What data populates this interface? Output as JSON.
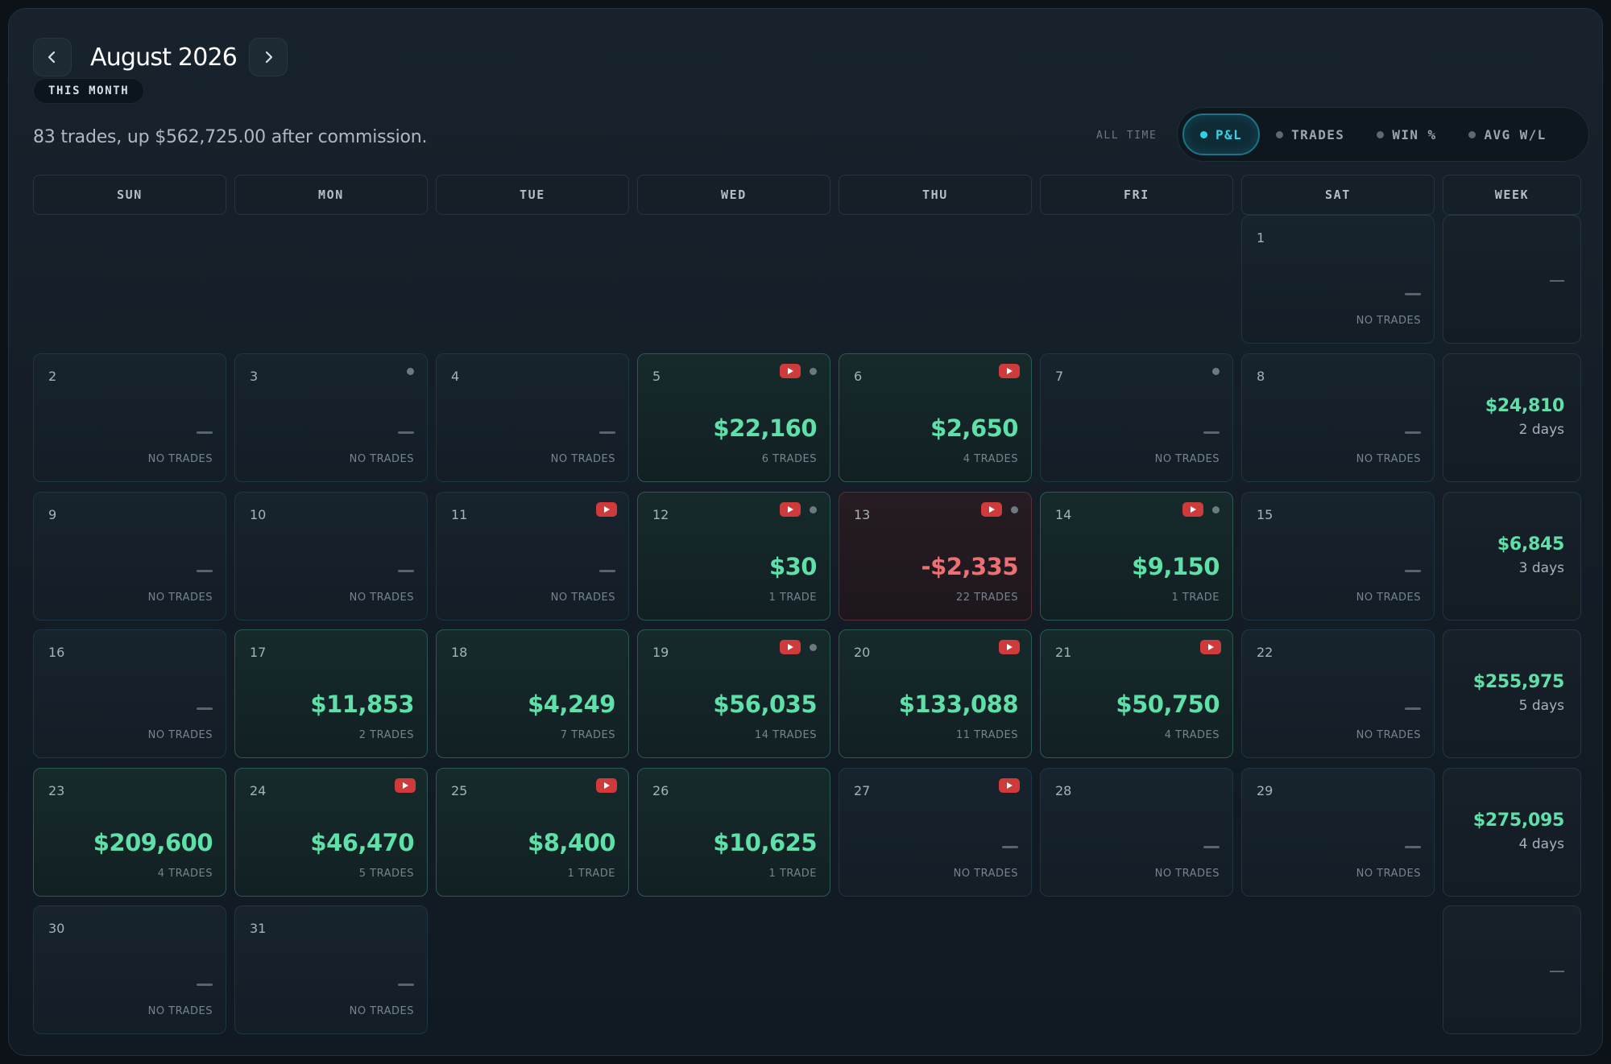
{
  "header": {
    "prev_icon": "chevron-left-icon",
    "next_icon": "chevron-right-icon",
    "month": "August 2026",
    "badge": "THIS MONTH",
    "summary": "83 trades, up $562,725.00 after commission."
  },
  "filter": {
    "scope_label": "ALL TIME",
    "options": [
      "P&L",
      "TRADES",
      "WIN %",
      "AVG W/L"
    ],
    "active": "P&L"
  },
  "weekdays": [
    "SUN",
    "MON",
    "TUE",
    "WED",
    "THU",
    "FRI",
    "SAT",
    "WEEK"
  ],
  "colors": {
    "positive": "#5ee0a8",
    "negative": "#ee6f72",
    "accent": "#3ad0e8",
    "video_badge": "#cf3a3a"
  },
  "days": [
    {
      "day": "1",
      "value": null,
      "trades": "NO TRADES",
      "video": false,
      "note": false
    },
    {
      "day": "2",
      "value": null,
      "trades": "NO TRADES",
      "video": false,
      "note": false
    },
    {
      "day": "3",
      "value": null,
      "trades": "NO TRADES",
      "video": false,
      "note": true
    },
    {
      "day": "4",
      "value": null,
      "trades": "NO TRADES",
      "video": false,
      "note": false
    },
    {
      "day": "5",
      "value": "$22,160",
      "trades": "6 TRADES",
      "video": true,
      "note": true,
      "tone": "green"
    },
    {
      "day": "6",
      "value": "$2,650",
      "trades": "4 TRADES",
      "video": true,
      "note": false,
      "tone": "green"
    },
    {
      "day": "7",
      "value": null,
      "trades": "NO TRADES",
      "video": false,
      "note": true
    },
    {
      "day": "8",
      "value": null,
      "trades": "NO TRADES",
      "video": false,
      "note": false
    },
    {
      "day": "9",
      "value": null,
      "trades": "NO TRADES",
      "video": false,
      "note": false
    },
    {
      "day": "10",
      "value": null,
      "trades": "NO TRADES",
      "video": false,
      "note": false
    },
    {
      "day": "11",
      "value": null,
      "trades": "NO TRADES",
      "video": true,
      "note": false
    },
    {
      "day": "12",
      "value": "$30",
      "trades": "1 TRADE",
      "video": true,
      "note": true,
      "tone": "green"
    },
    {
      "day": "13",
      "value": "-$2,335",
      "trades": "22 TRADES",
      "video": true,
      "note": true,
      "tone": "red"
    },
    {
      "day": "14",
      "value": "$9,150",
      "trades": "1 TRADE",
      "video": true,
      "note": true,
      "tone": "green"
    },
    {
      "day": "15",
      "value": null,
      "trades": "NO TRADES",
      "video": false,
      "note": false
    },
    {
      "day": "16",
      "value": null,
      "trades": "NO TRADES",
      "video": false,
      "note": false
    },
    {
      "day": "17",
      "value": "$11,853",
      "trades": "2 TRADES",
      "video": false,
      "note": false,
      "tone": "green"
    },
    {
      "day": "18",
      "value": "$4,249",
      "trades": "7 TRADES",
      "video": false,
      "note": false,
      "tone": "green"
    },
    {
      "day": "19",
      "value": "$56,035",
      "trades": "14 TRADES",
      "video": true,
      "note": true,
      "tone": "green"
    },
    {
      "day": "20",
      "value": "$133,088",
      "trades": "11 TRADES",
      "video": true,
      "note": false,
      "tone": "green"
    },
    {
      "day": "21",
      "value": "$50,750",
      "trades": "4 TRADES",
      "video": true,
      "note": false,
      "tone": "green"
    },
    {
      "day": "22",
      "value": null,
      "trades": "NO TRADES",
      "video": false,
      "note": false
    },
    {
      "day": "23",
      "value": "$209,600",
      "trades": "4 TRADES",
      "video": false,
      "note": false,
      "tone": "green"
    },
    {
      "day": "24",
      "value": "$46,470",
      "trades": "5 TRADES",
      "video": true,
      "note": false,
      "tone": "green"
    },
    {
      "day": "25",
      "value": "$8,400",
      "trades": "1 TRADE",
      "video": true,
      "note": false,
      "tone": "green"
    },
    {
      "day": "26",
      "value": "$10,625",
      "trades": "1 TRADE",
      "video": false,
      "note": false,
      "tone": "green"
    },
    {
      "day": "27",
      "value": null,
      "trades": "NO TRADES",
      "video": true,
      "note": false
    },
    {
      "day": "28",
      "value": null,
      "trades": "NO TRADES",
      "video": false,
      "note": false
    },
    {
      "day": "29",
      "value": null,
      "trades": "NO TRADES",
      "video": false,
      "note": false
    },
    {
      "day": "30",
      "value": null,
      "trades": "NO TRADES",
      "video": false,
      "note": false
    },
    {
      "day": "31",
      "value": null,
      "trades": "NO TRADES",
      "video": false,
      "note": false
    }
  ],
  "weeks": [
    {
      "value": null,
      "days": null
    },
    {
      "value": "$24,810",
      "days": "2 days"
    },
    {
      "value": "$6,845",
      "days": "3 days"
    },
    {
      "value": "$255,975",
      "days": "5 days"
    },
    {
      "value": "$275,095",
      "days": "4 days"
    },
    {
      "value": null,
      "days": null
    }
  ]
}
